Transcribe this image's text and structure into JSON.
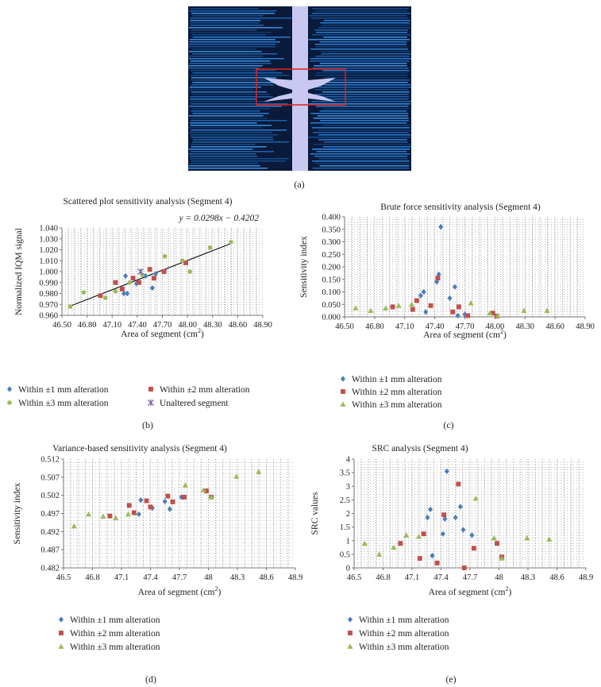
{
  "colors": {
    "within1": "#4a7ebb",
    "within2": "#c0504d",
    "within3": "#9bbb59",
    "unaltered": "#8064a2",
    "trendline": "#111111",
    "gridDots": "#8a8a8a",
    "panelBg": "#0a1a3a",
    "stripLight": "#c8c8f0",
    "roi": "#e02020"
  },
  "panel_a": {
    "caption": "(a)"
  },
  "chart_data": [
    {
      "id": "b",
      "type": "scatter",
      "title": "Scattered plot sensitivity analysis (Segment 4)",
      "xlabel": "Area of segment (cm",
      "xlabel_sup": "2",
      "xlabel_end": ")",
      "ylabel": "Normalized IQM signal",
      "xlim": [
        46.5,
        48.9
      ],
      "ylim": [
        0.96,
        1.04
      ],
      "xticks": [
        46.5,
        46.8,
        47.1,
        47.4,
        47.7,
        48.0,
        48.3,
        48.6,
        48.9
      ],
      "xtick_labels": [
        "46.50",
        "46.80",
        "47.10",
        "47.40",
        "47.70",
        "48.00",
        "48.30",
        "48.60",
        "48.90"
      ],
      "yticks": [
        0.96,
        0.97,
        0.98,
        0.99,
        1.0,
        1.01,
        1.02,
        1.03,
        1.04
      ],
      "ytick_labels": [
        "0.960",
        "0.970",
        "0.980",
        "0.990",
        "1.000",
        "1.010",
        "1.020",
        "1.030",
        "1.040"
      ],
      "equation": "y = 0.0298x − 0.4202",
      "trendline": {
        "slope": 0.0298,
        "intercept": -0.4202,
        "x_range": [
          46.6,
          48.53
        ]
      },
      "legend": [
        {
          "name": "Within ±1 mm alteration",
          "marker": "diamond",
          "colorKey": "within1"
        },
        {
          "name": "Within ±2 mm alteration",
          "marker": "square",
          "colorKey": "within2"
        },
        {
          "name": "Within ±3 mm alteration",
          "marker": "circle",
          "colorKey": "within3"
        },
        {
          "name": "Unaltered segment",
          "marker": "x",
          "colorKey": "unaltered"
        }
      ],
      "legend_order": [
        0,
        2,
        1,
        3
      ],
      "series": [
        {
          "name": "Within ±1 mm alteration",
          "marker": "diamond",
          "colorKey": "within1",
          "points": [
            [
              47.26,
              0.996
            ],
            [
              47.28,
              0.98
            ],
            [
              47.24,
              0.98
            ],
            [
              47.39,
              0.989
            ],
            [
              47.5,
              0.996
            ],
            [
              47.58,
              0.985
            ],
            [
              47.62,
              0.998
            ]
          ]
        },
        {
          "name": "Within ±2 mm alteration",
          "marker": "square",
          "colorKey": "within2",
          "points": [
            [
              46.96,
              0.978
            ],
            [
              47.14,
              0.99
            ],
            [
              47.22,
              0.984
            ],
            [
              47.35,
              0.994
            ],
            [
              47.42,
              0.99
            ],
            [
              47.55,
              1.002
            ],
            [
              47.6,
              0.994
            ],
            [
              47.72,
              1.0
            ],
            [
              47.98,
              1.008
            ]
          ]
        },
        {
          "name": "Within ±3 mm alteration",
          "marker": "circle",
          "colorKey": "within3",
          "points": [
            [
              46.6,
              0.968
            ],
            [
              46.76,
              0.981
            ],
            [
              47.02,
              0.976
            ],
            [
              47.14,
              0.982
            ],
            [
              47.31,
              0.99
            ],
            [
              47.46,
              0.997
            ],
            [
              47.73,
              1.014
            ],
            [
              47.94,
              1.01
            ],
            [
              48.03,
              1.0
            ],
            [
              48.27,
              1.022
            ],
            [
              48.52,
              1.027
            ]
          ]
        },
        {
          "name": "Unaltered segment",
          "marker": "x",
          "colorKey": "unaltered",
          "points": [
            [
              47.44,
              1.0
            ]
          ]
        }
      ]
    },
    {
      "id": "c",
      "type": "scatter",
      "title": "Brute force sensitivity analysis (Segment 4)",
      "xlabel": "Area of segment (cm",
      "xlabel_sup": "2",
      "xlabel_end": ")",
      "ylabel": "Sensitivity index",
      "xlim": [
        46.5,
        48.9
      ],
      "ylim": [
        0,
        0.4
      ],
      "xticks": [
        46.5,
        46.8,
        47.1,
        47.4,
        47.7,
        48.0,
        48.3,
        48.6,
        48.9
      ],
      "xtick_labels": [
        "46.50",
        "46.80",
        "47.10",
        "47.40",
        "47.70",
        "48.00",
        "48.30",
        "48.60",
        "48.90"
      ],
      "yticks": [
        0,
        0.05,
        0.1,
        0.15,
        0.2,
        0.25,
        0.3,
        0.35,
        0.4
      ],
      "ytick_labels": [
        "0.000",
        "0.050",
        "0.100",
        "0.150",
        "0.200",
        "0.250",
        "0.300",
        "0.350",
        "0.400"
      ],
      "legend": [
        {
          "name": "Within ±1 mm alteration",
          "marker": "diamond",
          "colorKey": "within1"
        },
        {
          "name": "Within ±2 mm alteration",
          "marker": "square",
          "colorKey": "within2"
        },
        {
          "name": "Within ±3 mm alteration",
          "marker": "triangle",
          "colorKey": "within3"
        }
      ],
      "series": [
        {
          "name": "Within ±1 mm alteration",
          "marker": "diamond",
          "colorKey": "within1",
          "points": [
            [
              47.26,
              0.085
            ],
            [
              47.29,
              0.1
            ],
            [
              47.31,
              0.02
            ],
            [
              47.42,
              0.14
            ],
            [
              47.44,
              0.17
            ],
            [
              47.46,
              0.36
            ],
            [
              47.55,
              0.075
            ],
            [
              47.6,
              0.12
            ],
            [
              47.63,
              0.005
            ],
            [
              47.7,
              0.01
            ]
          ]
        },
        {
          "name": "Within ±2 mm alteration",
          "marker": "square",
          "colorKey": "within2",
          "points": [
            [
              46.98,
              0.04
            ],
            [
              47.18,
              0.03
            ],
            [
              47.22,
              0.065
            ],
            [
              47.36,
              0.045
            ],
            [
              47.43,
              0.155
            ],
            [
              47.58,
              0.02
            ],
            [
              47.64,
              0.04
            ],
            [
              47.73,
              0.005
            ],
            [
              47.98,
              0.015
            ],
            [
              48.02,
              0.003
            ]
          ]
        },
        {
          "name": "Within ±3 mm alteration",
          "marker": "triangle",
          "colorKey": "within3",
          "points": [
            [
              46.61,
              0.035
            ],
            [
              46.76,
              0.025
            ],
            [
              46.91,
              0.035
            ],
            [
              47.04,
              0.045
            ],
            [
              47.17,
              0.05
            ],
            [
              47.76,
              0.055
            ],
            [
              47.95,
              0.015
            ],
            [
              48.03,
              0.005
            ],
            [
              48.29,
              0.025
            ],
            [
              48.52,
              0.025
            ]
          ]
        }
      ]
    },
    {
      "id": "d",
      "type": "scatter",
      "title": "Variance-based sensitivity analysis (Segment 4)",
      "xlabel": "Area of segment (cm",
      "xlabel_sup": "2",
      "xlabel_end": ")",
      "ylabel": "Sensitivity index",
      "xlim": [
        46.5,
        48.9
      ],
      "ylim": [
        0.482,
        0.512
      ],
      "xticks": [
        46.5,
        46.8,
        47.1,
        47.4,
        47.7,
        48.0,
        48.3,
        48.6,
        48.9
      ],
      "xtick_labels": [
        "46.5",
        "46.8",
        "47.1",
        "47.4",
        "47.7",
        "48",
        "48.3",
        "48.6",
        "48.9"
      ],
      "yticks": [
        0.482,
        0.487,
        0.492,
        0.497,
        0.502,
        0.507,
        0.512
      ],
      "ytick_labels": [
        "0.482",
        "0.487",
        "0.492",
        "0.497",
        "0.502",
        "0.507",
        "0.512"
      ],
      "legend": [
        {
          "name": "Within ±1 mm alteration",
          "marker": "diamond",
          "colorKey": "within1"
        },
        {
          "name": "Within ±2 mm alteration",
          "marker": "square",
          "colorKey": "within2"
        },
        {
          "name": "Within ±3 mm alteration",
          "marker": "triangle",
          "colorKey": "within3"
        }
      ],
      "series": [
        {
          "name": "Within ±1 mm alteration",
          "marker": "diamond",
          "colorKey": "within1",
          "points": [
            [
              47.28,
              0.4968
            ],
            [
              47.3,
              0.5007
            ],
            [
              47.42,
              0.4985
            ],
            [
              47.55,
              0.5003
            ],
            [
              47.6,
              0.4982
            ],
            [
              47.72,
              0.5015
            ]
          ]
        },
        {
          "name": "Within ±2 mm alteration",
          "marker": "square",
          "colorKey": "within2",
          "points": [
            [
              46.98,
              0.4963
            ],
            [
              47.18,
              0.4992
            ],
            [
              47.23,
              0.4972
            ],
            [
              47.36,
              0.5005
            ],
            [
              47.4,
              0.4988
            ],
            [
              47.58,
              0.5018
            ],
            [
              47.63,
              0.5002
            ],
            [
              47.75,
              0.5015
            ],
            [
              47.98,
              0.5032
            ],
            [
              48.03,
              0.5015
            ]
          ]
        },
        {
          "name": "Within ±3 mm alteration",
          "marker": "triangle",
          "colorKey": "within3",
          "points": [
            [
              46.61,
              0.4935
            ],
            [
              46.76,
              0.4968
            ],
            [
              46.91,
              0.4962
            ],
            [
              47.04,
              0.4958
            ],
            [
              47.17,
              0.4968
            ],
            [
              47.76,
              0.5048
            ],
            [
              47.95,
              0.5035
            ],
            [
              48.03,
              0.5015
            ],
            [
              48.29,
              0.5072
            ],
            [
              48.52,
              0.5085
            ]
          ]
        }
      ]
    },
    {
      "id": "e",
      "type": "scatter",
      "title": "SRC analysis (Segment 4)",
      "xlabel": "Area of segment (cm",
      "xlabel_sup": "2",
      "xlabel_end": ")",
      "ylabel": "SRC values",
      "xlim": [
        46.5,
        48.9
      ],
      "ylim": [
        0,
        4
      ],
      "xticks": [
        46.5,
        46.8,
        47.1,
        47.4,
        47.7,
        48.0,
        48.3,
        48.6,
        48.9
      ],
      "xtick_labels": [
        "46.5",
        "46.8",
        "47.1",
        "47.4",
        "47.7",
        "48",
        "48.3",
        "48.6",
        "48.9"
      ],
      "yticks": [
        0,
        0.5,
        1,
        1.5,
        2,
        2.5,
        3,
        3.5,
        4
      ],
      "ytick_labels": [
        "0",
        "0.5",
        "1",
        "1.5",
        "2",
        "2.5",
        "3",
        "3.5",
        "4"
      ],
      "legend": [
        {
          "name": "Within ±1 mm alteration",
          "marker": "diamond",
          "colorKey": "within1"
        },
        {
          "name": "Within ±2 mm alteration",
          "marker": "square",
          "colorKey": "within2"
        },
        {
          "name": "Within ±3 mm alteration",
          "marker": "triangle",
          "colorKey": "within3"
        }
      ],
      "series": [
        {
          "name": "Within ±1 mm alteration",
          "marker": "diamond",
          "colorKey": "within1",
          "points": [
            [
              47.26,
              1.85
            ],
            [
              47.29,
              2.15
            ],
            [
              47.31,
              0.45
            ],
            [
              47.42,
              1.25
            ],
            [
              47.44,
              1.8
            ],
            [
              47.46,
              3.55
            ],
            [
              47.55,
              1.85
            ],
            [
              47.6,
              2.25
            ],
            [
              47.63,
              1.4
            ],
            [
              47.72,
              1.2
            ]
          ]
        },
        {
          "name": "Within ±2 mm alteration",
          "marker": "square",
          "colorKey": "within2",
          "points": [
            [
              46.98,
              0.9
            ],
            [
              47.18,
              0.35
            ],
            [
              47.22,
              1.25
            ],
            [
              47.36,
              0.18
            ],
            [
              47.43,
              1.95
            ],
            [
              47.58,
              3.08
            ],
            [
              47.64,
              0.0
            ],
            [
              47.74,
              0.72
            ],
            [
              47.98,
              0.9
            ],
            [
              48.03,
              0.4
            ]
          ]
        },
        {
          "name": "Within ±3 mm alteration",
          "marker": "triangle",
          "colorKey": "within3",
          "points": [
            [
              46.61,
              0.9
            ],
            [
              46.76,
              0.5
            ],
            [
              46.91,
              0.75
            ],
            [
              47.04,
              1.2
            ],
            [
              47.17,
              1.15
            ],
            [
              47.76,
              2.55
            ],
            [
              47.95,
              1.1
            ],
            [
              48.03,
              0.35
            ],
            [
              48.29,
              1.1
            ],
            [
              48.52,
              1.05
            ]
          ]
        }
      ]
    }
  ],
  "captions": {
    "b": "(b)",
    "c": "(c)",
    "d": "(d)",
    "e": "(e)"
  }
}
